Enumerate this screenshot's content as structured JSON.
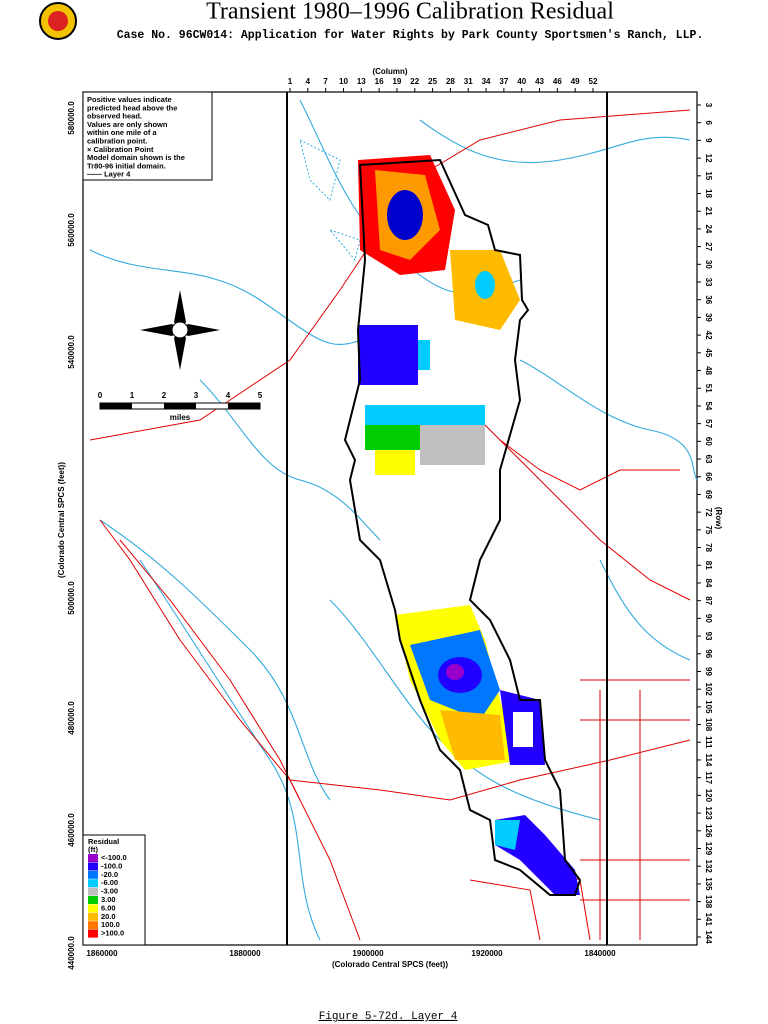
{
  "header": {
    "title": "Transient 1980–1996 Calibration Residual",
    "subtitle": "Case No. 96CW014: Application for Water Rights by Park County Sportsmen's Ranch, LLP."
  },
  "map": {
    "column_label": "(Column)",
    "columns": [
      "1",
      "4",
      "7",
      "10",
      "13",
      "16",
      "19",
      "22",
      "25",
      "28",
      "31",
      "34",
      "37",
      "40",
      "43",
      "46",
      "49",
      "52"
    ],
    "row_label": "(Row)",
    "rows": [
      "3",
      "6",
      "9",
      "12",
      "15",
      "18",
      "21",
      "24",
      "27",
      "30",
      "33",
      "36",
      "39",
      "42",
      "45",
      "48",
      "51",
      "54",
      "57",
      "60",
      "63",
      "66",
      "69",
      "72",
      "75",
      "78",
      "81",
      "84",
      "87",
      "90",
      "93",
      "96",
      "99",
      "102",
      "105",
      "108",
      "111",
      "114",
      "117",
      "120",
      "123",
      "126",
      "129",
      "132",
      "135",
      "138",
      "141",
      "144"
    ],
    "x_axis_label": "(Colorado Central SPCS (feet))",
    "x_ticks": [
      "1860000",
      "1880000",
      "1900000",
      "1920000",
      "1840000"
    ],
    "y_axis_label": "(Colorado Central SPCS (feet))",
    "y_ticks": [
      "580000.0",
      "560000.0",
      "540000.0",
      "500000.0",
      "480000.0",
      "460000.0",
      "440000.0"
    ]
  },
  "notes": [
    "Positive values indicate",
    "predicted head above the",
    "observed head.",
    "Values are only shown",
    "within one mile of a",
    "calibration point.",
    "× Calibration Point",
    "Model domain shown is the",
    "Tr80-96 initial domain.",
    "—— Layer 4"
  ],
  "scale": {
    "ticks": [
      "0",
      "1",
      "2",
      "3",
      "4",
      "5"
    ],
    "unit": "miles"
  },
  "legend": {
    "title": "Residual",
    "unit": "(ft)",
    "items": [
      {
        "label": "<-100.0",
        "color": "#9900cc"
      },
      {
        "label": "-100.0",
        "color": "#2200ff"
      },
      {
        "label": "-20.0",
        "color": "#0077ff"
      },
      {
        "label": "-6.00",
        "color": "#00ccff"
      },
      {
        "label": "-3.00",
        "color": "#c0c0c0"
      },
      {
        "label": "3.00",
        "color": "#00cc00"
      },
      {
        "label": "6.00",
        "color": "#ffff00"
      },
      {
        "label": "20.0",
        "color": "#ffbb00"
      },
      {
        "label": "100.0",
        "color": "#ff7700"
      },
      {
        "label": ">100.0",
        "color": "#ff0000"
      }
    ]
  },
  "caption": "Figure 5-72d.  Layer 4"
}
